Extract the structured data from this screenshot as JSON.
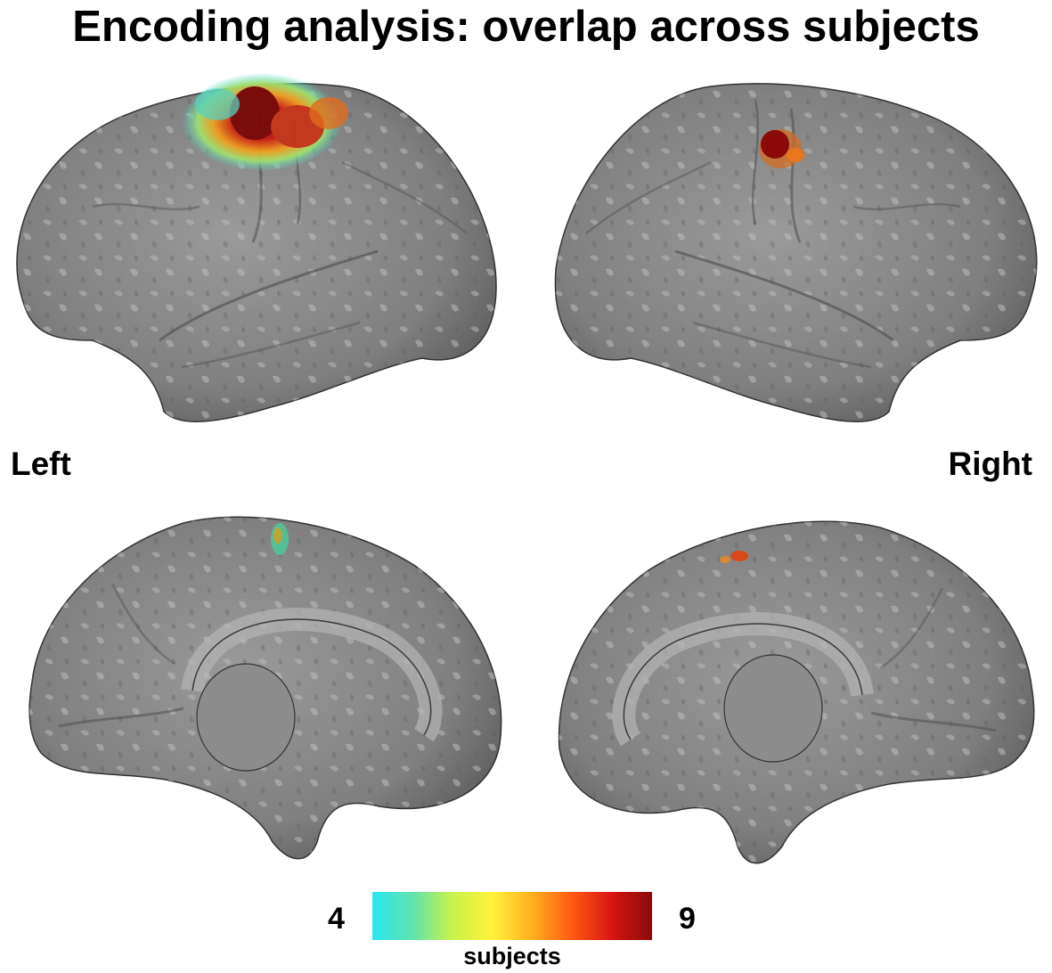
{
  "title": "Encoding analysis: overlap across subjects",
  "labels": {
    "left": "Left",
    "right": "Right"
  },
  "colorbar": {
    "min_label": "4",
    "max_label": "9",
    "label": "subjects",
    "min_value": 4,
    "max_value": 9,
    "colors": [
      "#29e6f0",
      "#5fe3b0",
      "#c7f24a",
      "#fff23a",
      "#ffb020",
      "#ff5a10",
      "#d81414",
      "#8a0a0a"
    ]
  },
  "panels": [
    {
      "view": "left-lateral"
    },
    {
      "view": "right-lateral"
    },
    {
      "view": "left-medial"
    },
    {
      "view": "right-medial"
    }
  ]
}
